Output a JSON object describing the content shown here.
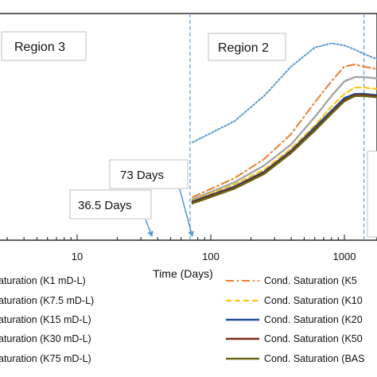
{
  "chart_data": {
    "type": "line",
    "xlabel": "Time (Days)",
    "xscale": "log",
    "x_ticks": [
      "10",
      "100",
      "1000"
    ],
    "ylim": [
      0,
      1
    ],
    "grid": false,
    "regions": [
      {
        "label": "Region 3"
      },
      {
        "label": "Region 2"
      }
    ],
    "vertical_lines": [
      {
        "x": 70
      },
      {
        "x": 1400
      }
    ],
    "annotations": [
      {
        "label": "73 Days",
        "x": 73
      },
      {
        "label": "36.5 Days",
        "x": 36.5
      }
    ],
    "series": [
      {
        "color": "#5b9bd5",
        "style": "dotted",
        "x": [
          73,
          150,
          250,
          400,
          600,
          800,
          1000,
          1200,
          1400,
          2000
        ],
        "y": [
          0.4,
          0.5,
          0.62,
          0.76,
          0.85,
          0.87,
          0.86,
          0.84,
          0.82,
          0.78
        ]
      },
      {
        "name": "Cond. Saturation (K5",
        "color": "#ed7d31",
        "style": "dash-dot",
        "x": [
          73,
          150,
          250,
          400,
          600,
          800,
          1000,
          1200,
          1400,
          2000
        ],
        "y": [
          0.14,
          0.23,
          0.32,
          0.44,
          0.59,
          0.69,
          0.76,
          0.77,
          0.76,
          0.74
        ]
      },
      {
        "color": "#a5a5a5",
        "style": "solid",
        "x": [
          73,
          150,
          250,
          400,
          600,
          800,
          1000,
          1200,
          1400,
          2000
        ],
        "y": [
          0.13,
          0.21,
          0.29,
          0.39,
          0.52,
          0.62,
          0.69,
          0.71,
          0.71,
          0.7
        ]
      },
      {
        "name": "Cond. Saturation (K10",
        "color": "#ffc000",
        "style": "dashed",
        "x": [
          73,
          150,
          250,
          400,
          600,
          800,
          1000,
          1200,
          1400,
          2000
        ],
        "y": [
          0.125,
          0.2,
          0.27,
          0.37,
          0.48,
          0.57,
          0.63,
          0.66,
          0.66,
          0.65
        ]
      },
      {
        "name": "Cond. Saturation (K20",
        "color": "#1f4ea1",
        "style": "solid",
        "x": [
          73,
          150,
          250,
          400,
          600,
          800,
          1000,
          1200,
          1400,
          2000
        ],
        "y": [
          0.12,
          0.19,
          0.26,
          0.36,
          0.47,
          0.55,
          0.61,
          0.63,
          0.63,
          0.62
        ]
      },
      {
        "name": "Cond. Saturation (K50",
        "color": "#7b2a10",
        "style": "solid",
        "x": [
          73,
          150,
          250,
          400,
          600,
          800,
          1000,
          1200,
          1400,
          2000
        ],
        "y": [
          0.115,
          0.185,
          0.255,
          0.355,
          0.46,
          0.54,
          0.6,
          0.625,
          0.625,
          0.615
        ]
      },
      {
        "name": "Cond. Saturation (BAS",
        "color": "#6b6616",
        "style": "solid",
        "x": [
          73,
          150,
          250,
          400,
          600,
          800,
          1000,
          1200,
          1400,
          2000
        ],
        "y": [
          0.11,
          0.18,
          0.25,
          0.35,
          0.455,
          0.535,
          0.595,
          0.62,
          0.62,
          0.61
        ]
      }
    ],
    "legend": {
      "placement": "bottom",
      "left_column": [
        {
          "label": "aturation (K1 mD-L)",
          "color": "#5b9bd5",
          "style": "dotted"
        },
        {
          "label": "aturation (K7.5 mD-L)",
          "color": "#a5a5a5",
          "style": "solid"
        },
        {
          "label": "aturation (K15 mD-L)",
          "color": "#6b8fd0",
          "style": "solid"
        },
        {
          "label": "aturation (K30 mD-L)",
          "color": "#8b2a0e",
          "style": "solid"
        },
        {
          "label": "aturation (K75 mD-L)",
          "color": "#4a6b2a",
          "style": "solid"
        }
      ],
      "right_column": [
        {
          "label": "Cond. Saturation (K5",
          "color": "#ed7d31",
          "style": "dash-dot"
        },
        {
          "label": "Cond. Saturation (K10",
          "color": "#ffc000",
          "style": "dashed"
        },
        {
          "label": "Cond. Saturation (K20",
          "color": "#1f4ea1",
          "style": "solid"
        },
        {
          "label": "Cond. Saturation (K50",
          "color": "#7b2a10",
          "style": "solid"
        },
        {
          "label": "Cond. Saturation (BAS",
          "color": "#6b6616",
          "style": "solid"
        }
      ]
    }
  }
}
